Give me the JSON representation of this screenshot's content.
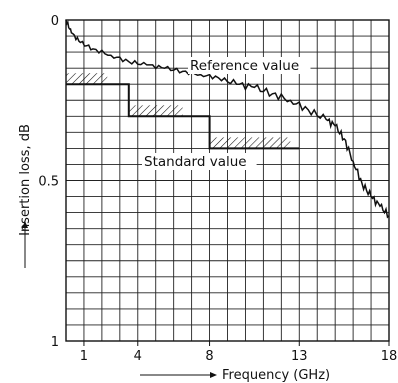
{
  "chart_data": {
    "type": "line",
    "title": "",
    "xlabel": "Frequency (GHz)",
    "ylabel": "Insertion loss, dB",
    "x_range": [
      0,
      18
    ],
    "y_range": [
      0,
      1
    ],
    "y_inverted": true,
    "grid": true,
    "x_ticks": [
      {
        "value": 1,
        "label": "1"
      },
      {
        "value": 4,
        "label": "4"
      },
      {
        "value": 8,
        "label": "8"
      },
      {
        "value": 13,
        "label": "13"
      },
      {
        "value": 18,
        "label": "18"
      }
    ],
    "y_ticks": [
      {
        "value": 0,
        "label": "0"
      },
      {
        "value": 0.5,
        "label": "0.5"
      },
      {
        "value": 1,
        "label": "1"
      }
    ],
    "series": [
      {
        "name": "Reference value",
        "style": "measured trace",
        "x": [
          0,
          0.3,
          0.8,
          1.5,
          2.5,
          3.5,
          4.5,
          5.5,
          6.5,
          7.5,
          8.5,
          9.5,
          10.5,
          11.5,
          12.5,
          13.5,
          14.5,
          15.0,
          15.5,
          16.0,
          16.5,
          17.0,
          17.5,
          18.0
        ],
        "y": [
          0,
          0.04,
          0.07,
          0.09,
          0.11,
          0.13,
          0.14,
          0.15,
          0.16,
          0.17,
          0.18,
          0.2,
          0.21,
          0.23,
          0.25,
          0.28,
          0.31,
          0.33,
          0.37,
          0.44,
          0.51,
          0.55,
          0.58,
          0.61
        ]
      },
      {
        "name": "Standard value",
        "style": "step limit line",
        "x": [
          0,
          3.5,
          3.5,
          8,
          8,
          13
        ],
        "y": [
          0.2,
          0.2,
          0.3,
          0.3,
          0.4,
          0.4
        ]
      }
    ],
    "hatched_limits": [
      {
        "x_start": 0,
        "x_end": 2.3,
        "y": 0.2
      },
      {
        "x_start": 3.5,
        "x_end": 6.5,
        "y": 0.3
      },
      {
        "x_start": 8,
        "x_end": 12.5,
        "y": 0.4
      }
    ],
    "annotations": [
      "Reference value",
      "Standard value"
    ]
  }
}
